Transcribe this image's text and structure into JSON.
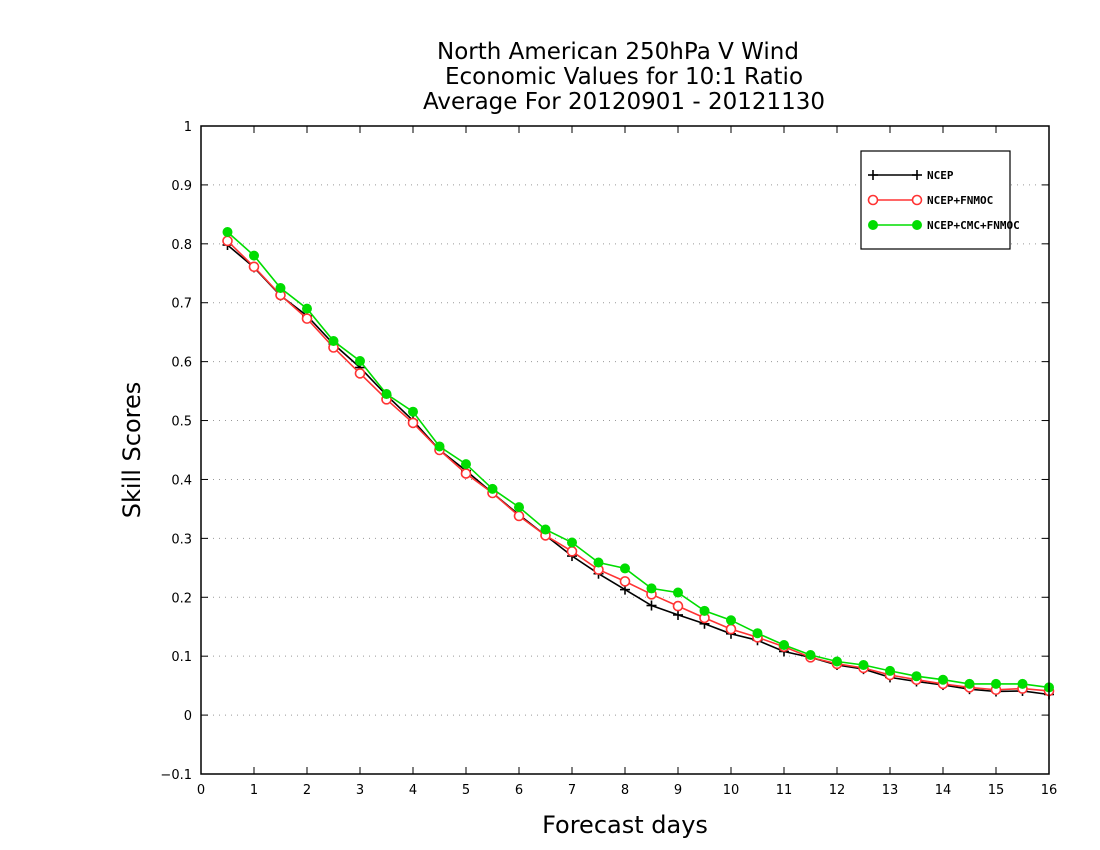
{
  "chart_data": {
    "type": "line",
    "title": [
      "North American 250hPa V Wind",
      "Economic Values for 10:1 Ratio",
      "Average For 20120901 - 20121130"
    ],
    "xlabel": "Forecast days",
    "ylabel": "Skill Scores",
    "xlim": [
      0,
      16
    ],
    "ylim": [
      -0.1,
      1
    ],
    "xticks": [
      "0",
      "1",
      "2",
      "3",
      "4",
      "5",
      "6",
      "7",
      "8",
      "9",
      "10",
      "11",
      "12",
      "13",
      "14",
      "15",
      "16"
    ],
    "yticks": [
      "−0.1",
      "0",
      "0.1",
      "0.2",
      "0.3",
      "0.4",
      "0.5",
      "0.6",
      "0.7",
      "0.8",
      "0.9",
      "1"
    ],
    "grid": "dotted horizontal",
    "legend_position": "top-right",
    "x": [
      0.5,
      1,
      1.5,
      2,
      2.5,
      3,
      3.5,
      4,
      4.5,
      5,
      5.5,
      6,
      6.5,
      7,
      7.5,
      8,
      8.5,
      9,
      9.5,
      10,
      10.5,
      11,
      11.5,
      12,
      12.5,
      13,
      13.5,
      14,
      14.5,
      15,
      15.5,
      16
    ],
    "series": [
      {
        "name": "NCEP",
        "color": "#000000",
        "marker": "plus",
        "values": [
          0.798,
          0.76,
          0.712,
          0.678,
          0.63,
          0.59,
          0.543,
          0.5,
          0.45,
          0.415,
          0.377,
          0.34,
          0.305,
          0.27,
          0.24,
          0.213,
          0.186,
          0.17,
          0.155,
          0.138,
          0.127,
          0.108,
          0.098,
          0.085,
          0.078,
          0.064,
          0.057,
          0.051,
          0.044,
          0.04,
          0.041,
          0.035
        ]
      },
      {
        "name": "NCEP+FNMOC",
        "color": "#ff3333",
        "marker": "open-circle",
        "values": [
          0.805,
          0.761,
          0.713,
          0.673,
          0.624,
          0.58,
          0.536,
          0.496,
          0.45,
          0.41,
          0.377,
          0.338,
          0.305,
          0.278,
          0.247,
          0.227,
          0.205,
          0.185,
          0.165,
          0.146,
          0.132,
          0.116,
          0.098,
          0.087,
          0.08,
          0.068,
          0.06,
          0.053,
          0.047,
          0.043,
          0.045,
          0.041
        ]
      },
      {
        "name": "NCEP+CMC+FNMOC",
        "color": "#00dd00",
        "marker": "filled-circle",
        "values": [
          0.82,
          0.78,
          0.725,
          0.69,
          0.635,
          0.601,
          0.545,
          0.515,
          0.456,
          0.426,
          0.384,
          0.353,
          0.315,
          0.293,
          0.259,
          0.249,
          0.215,
          0.208,
          0.177,
          0.161,
          0.139,
          0.119,
          0.102,
          0.091,
          0.085,
          0.075,
          0.066,
          0.06,
          0.053,
          0.053,
          0.053,
          0.047
        ]
      }
    ]
  }
}
